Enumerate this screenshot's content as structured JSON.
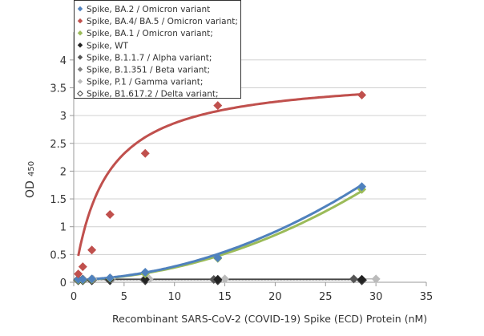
{
  "chart_data": {
    "type": "scatter",
    "title": "",
    "xlabel": "Recombinant SARS-CoV-2 (COVID-19) Spike (ECD) Protein  (nM)",
    "ylabel_main": "OD",
    "ylabel_sub": "450",
    "xlim": [
      0,
      35
    ],
    "ylim": [
      0,
      4.5
    ],
    "xticks": [
      0,
      5,
      10,
      15,
      20,
      25,
      30,
      35
    ],
    "yticks": [
      0,
      0.5,
      1,
      1.5,
      2,
      2.5,
      3,
      3.5,
      4
    ],
    "ytick_labels": [
      "0",
      "0.5",
      "1",
      "1.5",
      "2",
      "2.5",
      "3",
      "3.5",
      "4"
    ],
    "grid": "horizontal",
    "legend_position": "top-left",
    "series": [
      {
        "name": "Spike, BA.2 / Omicron variant",
        "color": "#4f81bd",
        "line": "#4f81bd",
        "fit": {
          "kind": "poly",
          "c": [
            0.04,
            0.0055,
            0.0019
          ]
        },
        "x": [
          0.45,
          0.9,
          1.8,
          3.6,
          7.1,
          14.3,
          28.6
        ],
        "y": [
          0.05,
          0.05,
          0.06,
          0.08,
          0.18,
          0.44,
          1.72
        ]
      },
      {
        "name": "Spike, BA.4/ BA.5 / Omicron variant;",
        "color": "#c0504d",
        "line": "#c0504d",
        "fit": {
          "kind": "sat",
          "c": [
            3.75,
            3.1
          ]
        },
        "x": [
          0.45,
          0.9,
          1.8,
          3.6,
          7.1,
          14.3,
          28.6
        ],
        "y": [
          0.15,
          0.28,
          0.58,
          1.22,
          2.32,
          3.18,
          3.37
        ]
      },
      {
        "name": "Spike, BA.1 / Omicron variant;",
        "color": "#9bbb59",
        "line": "#9bbb59",
        "fit": {
          "kind": "poly",
          "c": [
            0.04,
            0.0045,
            0.0018
          ]
        },
        "x": [
          0.45,
          0.9,
          1.8,
          3.6,
          7.1,
          14.3,
          28.6
        ],
        "y": [
          0.04,
          0.04,
          0.05,
          0.07,
          0.15,
          0.43,
          1.67
        ]
      },
      {
        "name": "Spike, WT",
        "color": "#222222",
        "line": "#444444",
        "fit": {
          "kind": "flat",
          "c": [
            0.05
          ]
        },
        "x": [
          0.45,
          0.9,
          1.8,
          3.6,
          7.1,
          14.3,
          28.6
        ],
        "y": [
          0.05,
          0.05,
          0.05,
          0.05,
          0.05,
          0.05,
          0.05
        ]
      },
      {
        "name": "Spike, B.1.1.7 / Alpha variant;",
        "color": "#555555",
        "line": "#666666",
        "fit": {
          "kind": "flat",
          "c": [
            0.055
          ]
        },
        "x": [
          0.4,
          0.85,
          1.75,
          3.5,
          7.0,
          13.9,
          27.8
        ],
        "y": [
          0.05,
          0.05,
          0.05,
          0.05,
          0.05,
          0.05,
          0.06
        ]
      },
      {
        "name": "Spike, B.1.351 / Beta variant;",
        "color": "#808080",
        "line": "#888888",
        "fit": {
          "kind": "flat",
          "c": [
            0.055
          ]
        },
        "x": [
          0.45,
          0.9,
          1.8,
          3.6,
          7.1,
          14.3,
          28.6
        ],
        "y": [
          0.05,
          0.05,
          0.05,
          0.05,
          0.05,
          0.05,
          0.05
        ]
      },
      {
        "name": "Spike, P.1 / Gamma variant;",
        "color": "#bbbbbb",
        "line": "#bbbbbb",
        "fit": {
          "kind": "flat",
          "c": [
            0.06
          ]
        },
        "x": [
          0.47,
          0.94,
          1.9,
          3.75,
          7.5,
          15.0,
          30.0
        ],
        "y": [
          0.06,
          0.06,
          0.06,
          0.06,
          0.06,
          0.06,
          0.06
        ]
      },
      {
        "name": "Spike, B1.617.2 / Delta variant;",
        "color": "#ffffff",
        "stroke": "#333333",
        "line": "#999999",
        "dashed": true,
        "fit": {
          "kind": "flat",
          "c": [
            0.045
          ]
        },
        "x": [
          0.45,
          0.9,
          1.8,
          3.6,
          7.1,
          14.3,
          28.6
        ],
        "y": [
          0.04,
          0.04,
          0.04,
          0.04,
          0.04,
          0.04,
          0.04
        ]
      }
    ]
  }
}
